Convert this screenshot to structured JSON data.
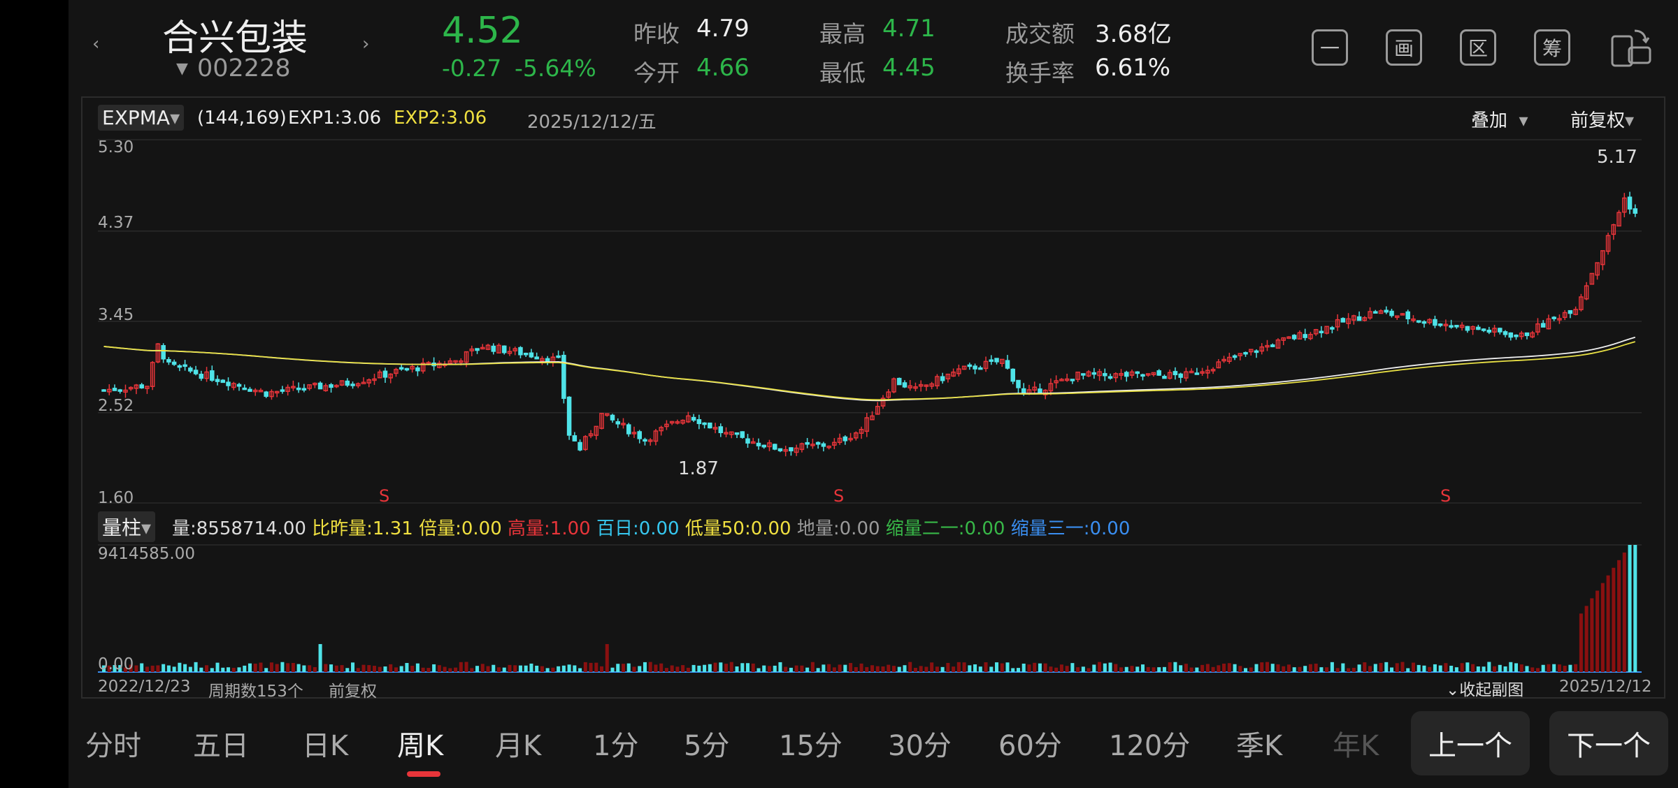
{
  "header": {
    "prev_arrow": "‹",
    "next_arrow": "›",
    "stock_name": "合兴包装",
    "code_caret": "▼",
    "stock_code": "002228",
    "price": "4.52",
    "change": "-0.27",
    "change_pct": "-5.64%",
    "quotes": [
      {
        "label": "昨收",
        "value": "4.79"
      },
      {
        "label": "今开",
        "value": "4.66"
      },
      {
        "label": "最高",
        "value": "4.71"
      },
      {
        "label": "最低",
        "value": "4.45"
      },
      {
        "label": "成交额",
        "value": "3.68亿"
      },
      {
        "label": "换手率",
        "value": "6.61%"
      }
    ],
    "tool_buttons": [
      {
        "icon": "minus-square-icon",
        "text": "一"
      },
      {
        "icon": "draw-square-icon",
        "text": "画"
      },
      {
        "icon": "range-square-icon",
        "text": "区"
      },
      {
        "icon": "chips-square-icon",
        "text": "筹"
      },
      {
        "icon": "rotate-screen-icon",
        "text": ""
      }
    ]
  },
  "chart": {
    "indicator": "EXPMA",
    "indicator_caret": "▾",
    "params": "(144,169)",
    "exp1": "EXP1:3.06",
    "exp2": "EXP2:3.06",
    "date": "2025/12/12/五",
    "overlay": "叠加",
    "adjust": "前复权",
    "dropdown_caret": "▾",
    "y_ticks": [
      "5.30",
      "4.37",
      "3.45",
      "2.52",
      "1.60"
    ],
    "max_label": "5.17",
    "min_label": "1.87",
    "signal": "S",
    "colors": {
      "up": "#e8353a",
      "down": "#4fe3e8",
      "exp1": "#f0f0f0",
      "exp2": "#e8e045",
      "grid": "#2a2a2a"
    }
  },
  "volume": {
    "indicator": "量柱",
    "indicator_caret": "▾",
    "items": [
      {
        "text": "量:8558714.00",
        "color": "#dddddd"
      },
      {
        "text": "比昨量:1.31",
        "color": "#f0e040"
      },
      {
        "text": "倍量:0.00",
        "color": "#f0e040"
      },
      {
        "text": "高量:1.00",
        "color": "#e8353a"
      },
      {
        "text": "百日:0.00",
        "color": "#36c8f0"
      },
      {
        "text": "低量50:0.00",
        "color": "#f0e040"
      },
      {
        "text": "地量:0.00",
        "color": "#9a9a9a"
      },
      {
        "text": "缩量二一:0.00",
        "color": "#38b848"
      },
      {
        "text": "缩量三一:0.00",
        "color": "#3a8ef0"
      }
    ],
    "max": "9414585.00",
    "min": "0.00"
  },
  "footer": {
    "start": "2022/12/23",
    "count": "周期数153个",
    "adjust": "前复权",
    "collapse": "⌄收起副图",
    "end": "2025/12/12"
  },
  "tabs": [
    "分时",
    "五日",
    "日K",
    "周K",
    "月K",
    "1分",
    "5分",
    "15分",
    "30分",
    "60分",
    "120分",
    "季K",
    "年K"
  ],
  "active_tab": "周K",
  "nav": {
    "prev": "上一个",
    "next": "下一个"
  }
}
